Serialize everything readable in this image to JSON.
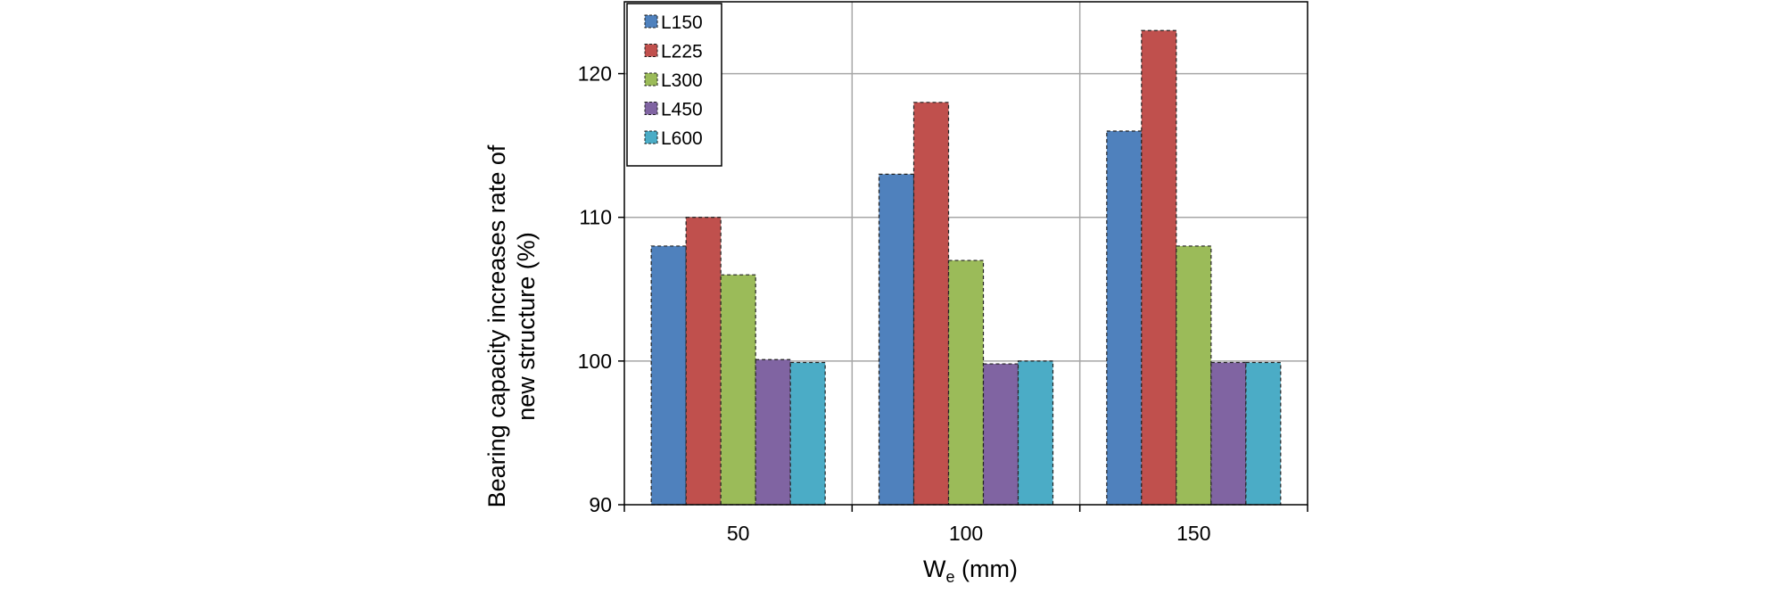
{
  "chart_data": {
    "type": "bar",
    "categories": [
      "50",
      "100",
      "150"
    ],
    "series": [
      {
        "name": "L150",
        "color": "#4f81bd",
        "values": [
          108,
          113,
          116
        ]
      },
      {
        "name": "L225",
        "color": "#c0504d",
        "values": [
          110,
          118,
          123
        ]
      },
      {
        "name": "L300",
        "color": "#9bbb59",
        "values": [
          106,
          107,
          108
        ]
      },
      {
        "name": "L450",
        "color": "#8064a2",
        "values": [
          100.1,
          99.8,
          99.9
        ]
      },
      {
        "name": "L600",
        "color": "#4bacc6",
        "values": [
          99.9,
          100,
          99.9
        ]
      }
    ],
    "xlabel": {
      "main": "W",
      "sub": "e",
      "unit": " (mm)"
    },
    "ylabel_lines": [
      "Bearing capacity increases rate of",
      "new structure (%)"
    ],
    "ylim": [
      90,
      125
    ],
    "yticks": [
      90,
      100,
      110,
      120
    ],
    "grid": true,
    "legend_position": "top-left",
    "bar_border": "dashed"
  }
}
